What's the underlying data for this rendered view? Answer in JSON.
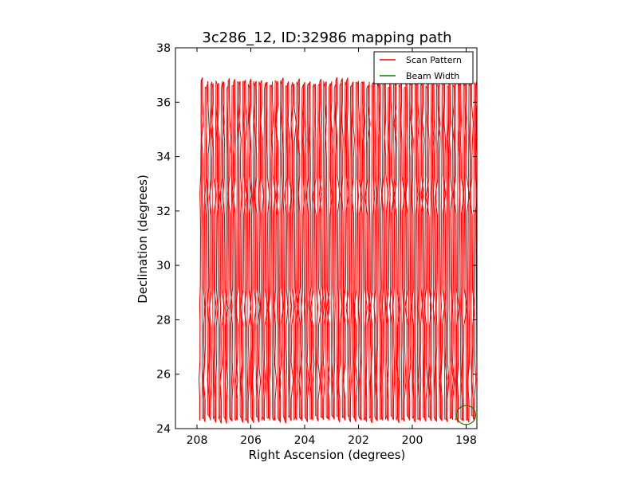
{
  "chart_data": {
    "type": "line",
    "title": "3c286_12, ID:32986 mapping path",
    "xlabel": "Right Ascension (degrees)",
    "ylabel": "Declination (degrees)",
    "xlim": [
      208.8,
      197.6
    ],
    "ylim": [
      24,
      38
    ],
    "x_ticks": [
      208,
      206,
      204,
      202,
      200,
      198
    ],
    "y_ticks": [
      24,
      26,
      28,
      30,
      32,
      34,
      36,
      38
    ],
    "grid": false,
    "legend_position": "top-right",
    "series": [
      {
        "name": "Scan Pattern",
        "color": "#ff0000",
        "pattern": "raster",
        "ra_range": [
          207.9,
          197.6
        ],
        "dec_range": [
          24.3,
          36.8
        ],
        "scan_count": 104,
        "turnaround_dec": [
          26.0,
          28.5,
          32.5,
          35.0
        ]
      },
      {
        "name": "Beam Width",
        "color": "#008000",
        "shape": "circle",
        "center": [
          198.0,
          24.5
        ],
        "radius_deg": 0.35
      }
    ]
  }
}
